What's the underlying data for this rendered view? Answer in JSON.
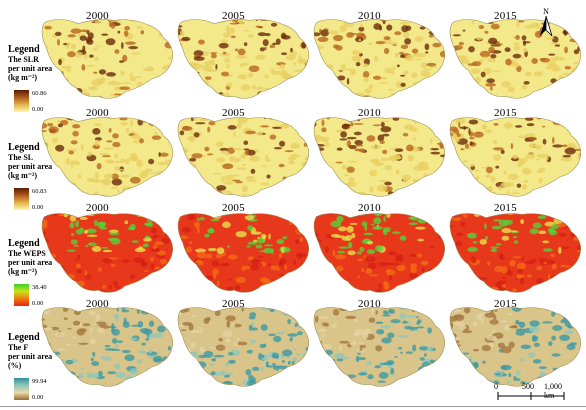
{
  "years": [
    "2000",
    "2005",
    "2010",
    "2015"
  ],
  "panels": [
    {
      "legend": {
        "title": "Legend",
        "sub1": "The SLR",
        "sub2": "per unit area",
        "unit": "(kg m⁻²)",
        "max": "60.86",
        "min": "0.00"
      },
      "ramp": [
        "#5a1e06",
        "#b05a1a",
        "#e6b24a",
        "#fff7b0"
      ],
      "mapBase": "#f3e88a"
    },
    {
      "legend": {
        "title": "Legend",
        "sub1": "The SL",
        "sub2": "per unit area",
        "unit": "(kg m⁻²)",
        "max": "60.83",
        "min": "0.00"
      },
      "ramp": [
        "#5a1e06",
        "#b05a1a",
        "#e6b24a",
        "#fff7b0"
      ],
      "mapBase": "#f3e88a"
    },
    {
      "legend": {
        "title": "Legend",
        "sub1": "The WEPS",
        "sub2": "per unit area",
        "unit": "(kg m⁻²)",
        "max": "38.40",
        "min": "0.00"
      },
      "ramp": [
        "#3ccf2a",
        "#c8e61a",
        "#f07a10",
        "#e62414"
      ],
      "mapBase": "#e8381c"
    },
    {
      "legend": {
        "title": "Legend",
        "sub1": "The F",
        "sub2": "per unit area",
        "unit": "(%)",
        "max": "99.94",
        "min": "0.00"
      },
      "ramp": [
        "#2f8f9a",
        "#8fc7b8",
        "#e8d9a8",
        "#9a6a30"
      ],
      "mapBase": "#d9c48a"
    }
  ],
  "north": "N",
  "scalebar": {
    "labels": [
      "0",
      "500",
      "1,000 km"
    ]
  }
}
